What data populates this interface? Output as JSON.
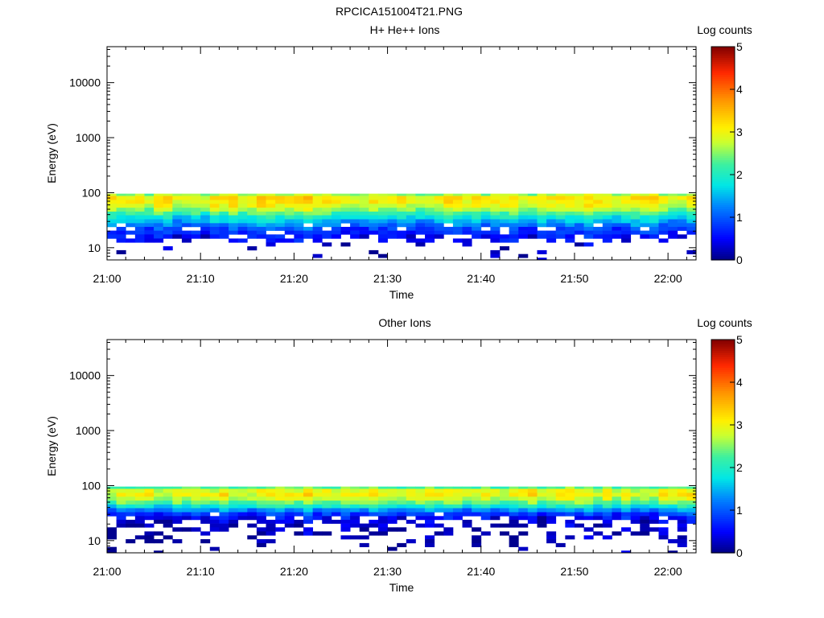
{
  "title": "RPCICA151004T21.PNG",
  "chart_data": [
    {
      "type": "heatmap",
      "title": "H+ He++ Ions",
      "xlabel": "Time",
      "ylabel": "Energy (eV)",
      "x_ticks": [
        "21:00",
        "21:10",
        "21:20",
        "21:30",
        "21:40",
        "21:50",
        "22:00"
      ],
      "x_range": [
        "21:00",
        "22:03"
      ],
      "y_scale": "log",
      "y_ticks": [
        "10",
        "100",
        "1000",
        "10000"
      ],
      "y_range": [
        6,
        45000
      ],
      "colorbar": {
        "label": "Log counts",
        "ticks": [
          "0",
          "1",
          "2",
          "3",
          "4",
          "5"
        ],
        "range": [
          0,
          5
        ]
      },
      "profile": {
        "energy_eV": [
          95,
          80,
          68,
          58,
          49,
          42,
          36,
          30,
          26,
          22,
          19,
          16,
          13.5,
          11.5,
          9.8,
          8.3,
          7.1,
          6.1
        ],
        "log_counts": [
          2.6,
          3.1,
          3.05,
          2.9,
          2.6,
          2.2,
          1.85,
          1.5,
          1.2,
          0.9,
          0.75,
          0.55,
          0.45,
          0.25,
          0.1,
          0.05,
          0.05,
          0.05
        ],
        "occupancy": [
          1,
          1,
          1,
          1,
          1,
          1,
          1,
          1,
          0.95,
          0.9,
          0.85,
          0.7,
          0.45,
          0.18,
          0.1,
          0.07,
          0.06,
          0.05
        ]
      },
      "notes": "Energy-time spectrogram; counts confined below ~100 eV throughout 21:00-22:03."
    },
    {
      "type": "heatmap",
      "title": "Other Ions",
      "xlabel": "Time",
      "ylabel": "Energy (eV)",
      "x_ticks": [
        "21:00",
        "21:10",
        "21:20",
        "21:30",
        "21:40",
        "21:50",
        "22:00"
      ],
      "x_range": [
        "21:00",
        "22:03"
      ],
      "y_scale": "log",
      "y_ticks": [
        "10",
        "100",
        "1000",
        "10000"
      ],
      "y_range": [
        6,
        45000
      ],
      "colorbar": {
        "label": "Log counts",
        "ticks": [
          "0",
          "1",
          "2",
          "3",
          "4",
          "5"
        ],
        "range": [
          0,
          5
        ]
      },
      "profile": {
        "energy_eV": [
          95,
          80,
          68,
          58,
          49,
          42,
          36,
          30,
          26,
          22,
          19,
          16,
          13.5,
          11.5,
          9.8,
          8.3,
          7.1,
          6.1
        ],
        "log_counts": [
          2.3,
          2.9,
          3.0,
          2.75,
          2.4,
          1.9,
          1.3,
          0.8,
          0.5,
          0.35,
          0.25,
          0.2,
          0.15,
          0.1,
          0.08,
          0.05,
          0.05,
          0.05
        ],
        "occupancy": [
          1,
          1,
          1,
          1,
          1,
          1,
          1,
          0.95,
          0.8,
          0.55,
          0.45,
          0.35,
          0.28,
          0.22,
          0.18,
          0.12,
          0.08,
          0.06
        ]
      },
      "notes": "Energy-time spectrogram; counts confined below ~100 eV; sparser at lowest energies."
    }
  ]
}
